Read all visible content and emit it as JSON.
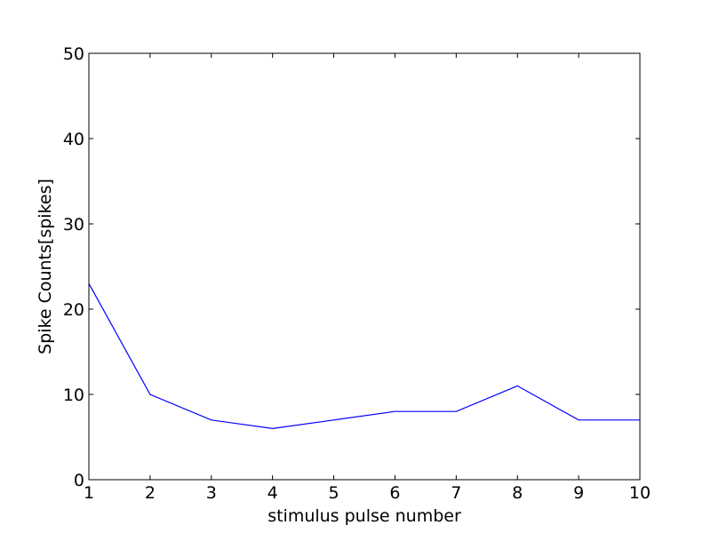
{
  "chart_data": {
    "type": "line",
    "title": "",
    "xlabel": "stimulus pulse number",
    "ylabel": "Spike Counts[spikes]",
    "xlim": [
      1,
      10
    ],
    "ylim": [
      0,
      50
    ],
    "xticks": [
      1,
      2,
      3,
      4,
      5,
      6,
      7,
      8,
      9,
      10
    ],
    "yticks": [
      0,
      10,
      20,
      30,
      40,
      50
    ],
    "grid": false,
    "legend": "none",
    "series": [
      {
        "color": "#0000ff",
        "x": [
          1,
          2,
          3,
          4,
          5,
          6,
          7,
          8,
          9,
          10
        ],
        "y": [
          23,
          10,
          7,
          6,
          7,
          8,
          8,
          11,
          7,
          7
        ]
      }
    ]
  }
}
